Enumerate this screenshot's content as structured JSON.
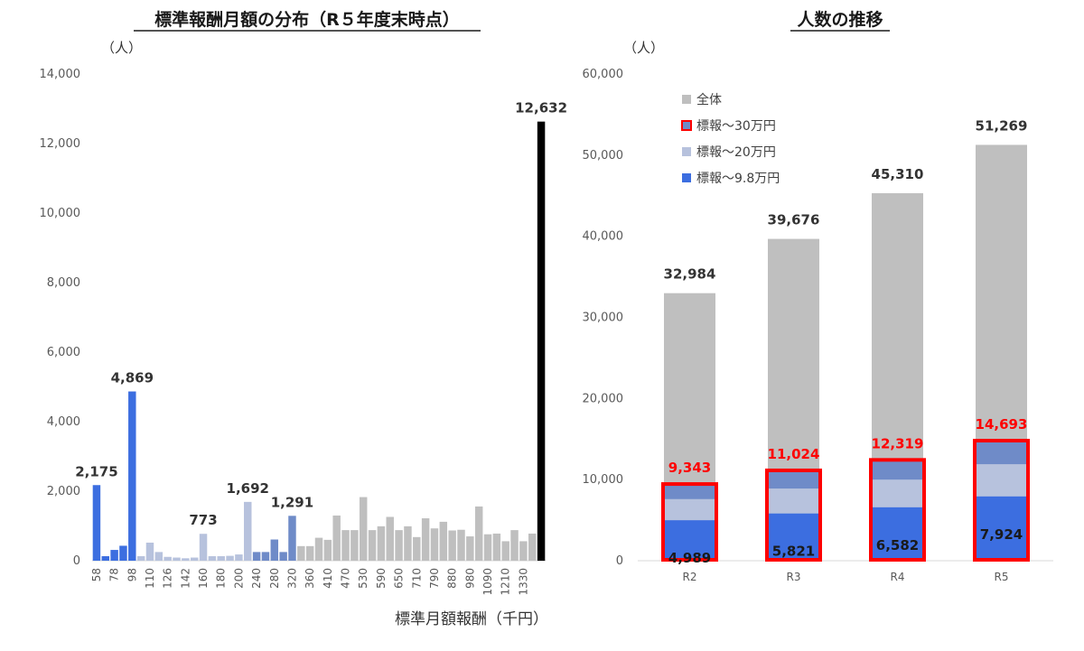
{
  "chart_data": [
    {
      "type": "bar",
      "title": "標準報酬月額の分布（R５年度末時点）",
      "unit_label": "（人）",
      "xlabel": "標準月額報酬（千円）",
      "ylim": [
        0,
        14000
      ],
      "yticks": [
        "0",
        "2,000",
        "4,000",
        "6,000",
        "8,000",
        "10,000",
        "12,000",
        "14,000"
      ],
      "ytick_values": [
        0,
        2000,
        4000,
        6000,
        8000,
        10000,
        12000,
        14000
      ],
      "x_tick_labels": [
        "58",
        "78",
        "98",
        "110",
        "126",
        "142",
        "160",
        "180",
        "200",
        "240",
        "280",
        "320",
        "360",
        "410",
        "470",
        "530",
        "590",
        "650",
        "710",
        "790",
        "880",
        "980",
        "1090",
        "1210",
        "1330"
      ],
      "colors": {
        "le98": "#3c6ee0",
        "le200": "#b7c2dd",
        "le300": "#6f8bc8",
        "rest": "#bfbfbf"
      },
      "groups": [
        "le98",
        "le98",
        "le98",
        "le98",
        "le98",
        "le200",
        "le200",
        "le200",
        "le200",
        "le200",
        "le200",
        "le200",
        "le200",
        "le200",
        "le200",
        "le200",
        "le200",
        "le200",
        "le300",
        "le300",
        "le300",
        "le300",
        "le300",
        "rest",
        "rest",
        "rest",
        "rest",
        "rest",
        "rest",
        "rest",
        "rest",
        "rest",
        "rest",
        "rest",
        "rest",
        "rest",
        "rest",
        "rest",
        "rest",
        "rest",
        "rest",
        "rest",
        "rest",
        "rest",
        "rest",
        "rest",
        "rest",
        "rest",
        "rest",
        "rest"
      ],
      "values": [
        2175,
        130,
        310,
        430,
        4869,
        130,
        520,
        250,
        110,
        90,
        70,
        90,
        773,
        130,
        130,
        140,
        180,
        1692,
        250,
        250,
        610,
        250,
        1291,
        420,
        420,
        660,
        600,
        1300,
        880,
        880,
        1830,
        880,
        990,
        1260,
        880,
        990,
        680,
        1220,
        930,
        1120,
        870,
        890,
        700,
        1560,
        760,
        780,
        560,
        880,
        560,
        780,
        12632
      ],
      "data_labels": {
        "0": "2,175",
        "4": "4,869",
        "12": "773",
        "17": "1,692",
        "22": "1,291",
        "50": "12,632"
      }
    },
    {
      "type": "bar",
      "title": "人数の推移",
      "unit_label": "（人）",
      "ylim": [
        0,
        60000
      ],
      "yticks": [
        "0",
        "10,000",
        "20,000",
        "30,000",
        "40,000",
        "50,000",
        "60,000"
      ],
      "ytick_values": [
        0,
        10000,
        20000,
        30000,
        40000,
        50000,
        60000
      ],
      "categories": [
        "R2",
        "R3",
        "R4",
        "R5"
      ],
      "series": [
        {
          "name": "全体",
          "values": [
            32984,
            39676,
            45310,
            51269
          ],
          "labels": [
            "32,984",
            "39,676",
            "45,310",
            "51,269"
          ],
          "color": "#bfbfbf"
        },
        {
          "name": "標報～30万円",
          "values": [
            9343,
            11024,
            12319,
            14693
          ],
          "labels": [
            "9,343",
            "11,024",
            "12,319",
            "14,693"
          ],
          "color": "#6f8bc8"
        },
        {
          "name": "標報～20万円",
          "values": [
            7600,
            8900,
            10000,
            11900
          ],
          "color": "#b7c2dd"
        },
        {
          "name": "標報～9.8万円",
          "values": [
            4989,
            5821,
            6582,
            7924
          ],
          "labels": [
            "4,989",
            "5,821",
            "6,582",
            "7,924"
          ],
          "color": "#3c6ee0"
        }
      ],
      "highlight_color": "#ff0000",
      "legend_position": "top-left"
    }
  ]
}
